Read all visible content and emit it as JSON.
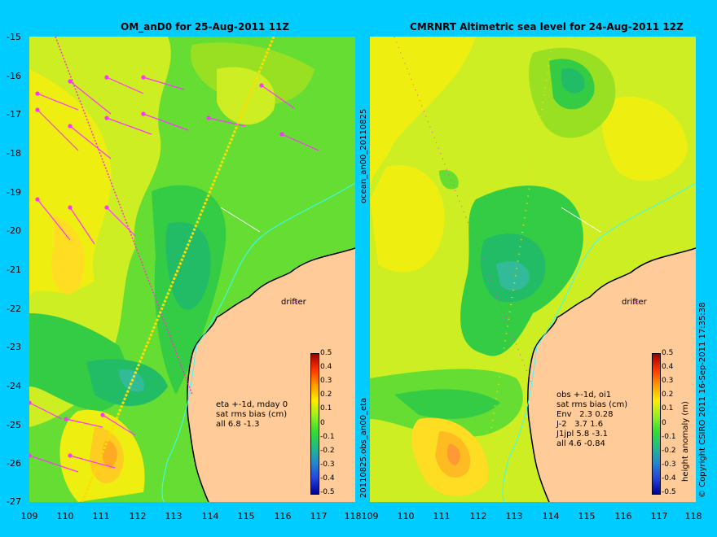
{
  "left": {
    "title": "OM_anD0 for 25-Aug-2011 11Z",
    "side_label": "20110825.obs_an00_eta",
    "side_label2": "ocean_an00_20110825",
    "stats": "eta +-1d, mday 0\nsat rms bias (cm)\nall 6.8 -1.3",
    "drifter": "drifter"
  },
  "right": {
    "title": "CMRNRT Altimetric sea level  for 24-Aug-2011 12Z",
    "stats": "obs +-1d, oi1\nsat rms bias (cm)\nEnv   2.3 0.28\nJ-2   3.7 1.6\nJ1jpl 5.8 -3.1\nall 4.6 -0.84",
    "drifter": "drifter",
    "copyright": "© Copyright CSIRO 2011   16-Sep-2011 17:35:38"
  },
  "axes": {
    "y_ticks": [
      "-15",
      "-16",
      "-17",
      "-18",
      "-19",
      "-20",
      "-21",
      "-22",
      "-23",
      "-24",
      "-25",
      "-26",
      "-27"
    ],
    "x_ticks_left": [
      "109",
      "110",
      "111",
      "112",
      "113",
      "114",
      "115",
      "116",
      "117",
      "118"
    ],
    "x_ticks_right": [
      "110",
      "111",
      "112",
      "113",
      "114",
      "115",
      "116",
      "117",
      "118"
    ],
    "x_first_left": "109",
    "x_first_right": "109"
  },
  "colorbar": {
    "label": "height anomaly (m)",
    "ticks": [
      "0.5",
      "0.4",
      "0.3",
      "0.2",
      "0.1",
      "0",
      "-0.1",
      "-0.2",
      "-0.3",
      "-0.4",
      "-0.5"
    ]
  },
  "colors": {
    "background": "#00ccff",
    "land": "#ffcc99",
    "vectors": "#ff33ff",
    "coast_contour": "#33ffff"
  }
}
